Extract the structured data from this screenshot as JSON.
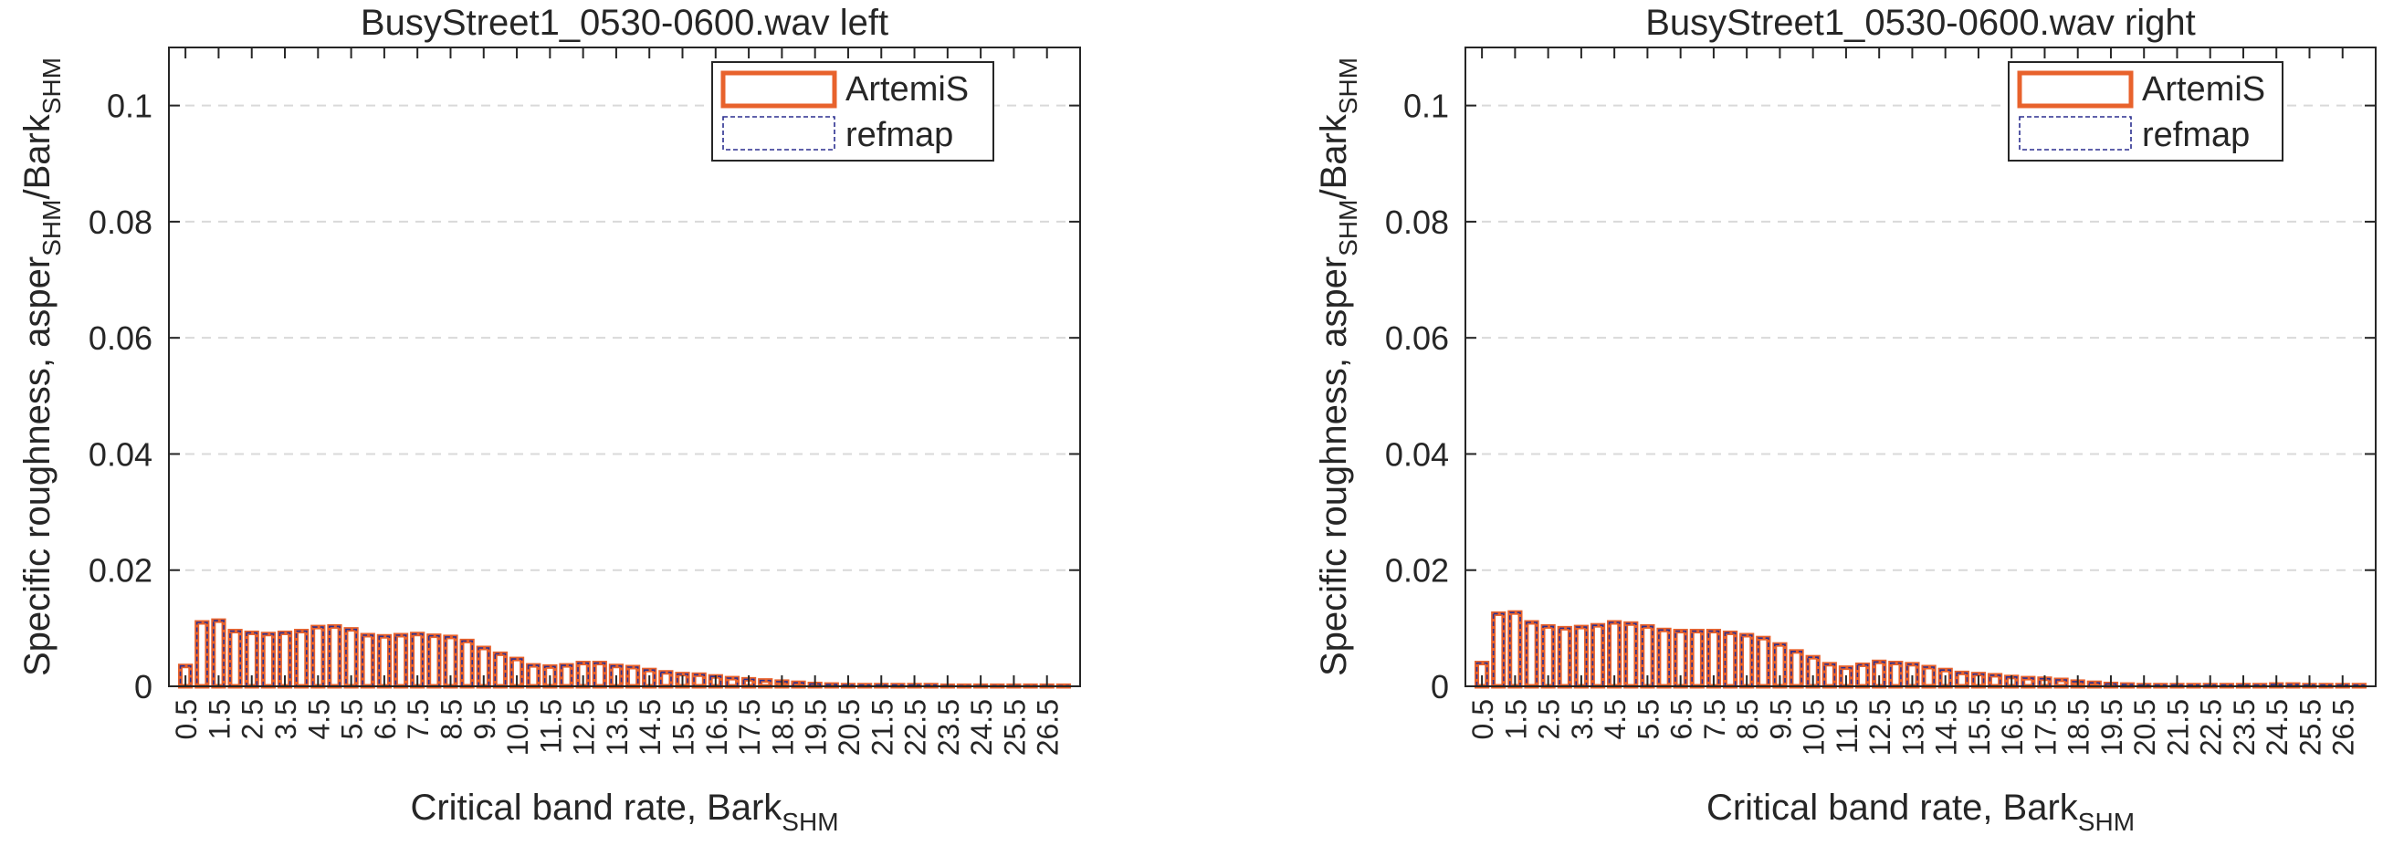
{
  "chart_data": [
    {
      "type": "bar",
      "title": "BusyStreet1_0530-0600.wav left",
      "xlabel": "Critical band rate, Bark",
      "xlabel_sub": "SHM",
      "ylabel_main": "Specific roughness, asper",
      "ylabel_sub1": "SHM",
      "ylabel_mid": "/Bark",
      "ylabel_sub2": "SHM",
      "ylim": [
        0,
        0.11
      ],
      "yticks": [
        0,
        0.02,
        0.04,
        0.06,
        0.08,
        0.1
      ],
      "ytick_labels": [
        "0",
        "0.02",
        "0.04",
        "0.06",
        "0.08",
        "0.1"
      ],
      "grid_y": true,
      "legend": {
        "position": "top-right",
        "entries": [
          "ArtemiS",
          "refmap"
        ]
      },
      "xtick_labels": [
        "0.5",
        "1.5",
        "2.5",
        "3.5",
        "4.5",
        "5.5",
        "6.5",
        "7.5",
        "8.5",
        "9.5",
        "10.5",
        "11.5",
        "12.5",
        "13.5",
        "14.5",
        "15.5",
        "16.5",
        "17.5",
        "18.5",
        "19.5",
        "20.5",
        "21.5",
        "22.5",
        "23.5",
        "24.5",
        "25.5",
        "26.5"
      ],
      "series": [
        {
          "name": "ArtemiS",
          "color": "#e8622c",
          "values": [
            0.0035,
            0.011,
            0.0113,
            0.0095,
            0.0092,
            0.009,
            0.0092,
            0.0095,
            0.0102,
            0.0103,
            0.0098,
            0.0088,
            0.0086,
            0.0088,
            0.009,
            0.0087,
            0.0085,
            0.0078,
            0.0066,
            0.0056,
            0.0047,
            0.0036,
            0.0034,
            0.0036,
            0.004,
            0.004,
            0.0035,
            0.0033,
            0.0028,
            0.0024,
            0.0021,
            0.002,
            0.0017,
            0.0014,
            0.0012,
            0.001,
            0.0008,
            0.0006,
            0.0004,
            0.0003,
            0.0002,
            0.0002,
            0.0002,
            0.0002,
            0.0002,
            0.0002,
            0.0001,
            0.0001,
            0.0001,
            0.0001,
            0.0001,
            0.0001,
            0.0001,
            0.0001
          ]
        },
        {
          "name": "refmap",
          "color": "#2b2f8f",
          "values": [
            0.0035,
            0.011,
            0.0113,
            0.0095,
            0.0092,
            0.009,
            0.0092,
            0.0095,
            0.0102,
            0.0103,
            0.0098,
            0.0088,
            0.0086,
            0.0088,
            0.009,
            0.0087,
            0.0085,
            0.0078,
            0.0066,
            0.0056,
            0.0047,
            0.0036,
            0.0034,
            0.0036,
            0.004,
            0.004,
            0.0035,
            0.0033,
            0.0028,
            0.0024,
            0.0021,
            0.002,
            0.0017,
            0.0014,
            0.0012,
            0.001,
            0.0008,
            0.0006,
            0.0004,
            0.0003,
            0.0002,
            0.0002,
            0.0002,
            0.0002,
            0.0002,
            0.0002,
            0.0001,
            0.0001,
            0.0001,
            0.0001,
            0.0001,
            0.0001,
            0.0001,
            0.0001
          ]
        }
      ]
    },
    {
      "type": "bar",
      "title": "BusyStreet1_0530-0600.wav right",
      "xlabel": "Critical band rate, Bark",
      "xlabel_sub": "SHM",
      "ylabel_main": "Specific roughness, asper",
      "ylabel_sub1": "SHM",
      "ylabel_mid": "/Bark",
      "ylabel_sub2": "SHM",
      "ylim": [
        0,
        0.11
      ],
      "yticks": [
        0,
        0.02,
        0.04,
        0.06,
        0.08,
        0.1
      ],
      "ytick_labels": [
        "0",
        "0.02",
        "0.04",
        "0.06",
        "0.08",
        "0.1"
      ],
      "grid_y": true,
      "legend": {
        "position": "top-right",
        "entries": [
          "ArtemiS",
          "refmap"
        ]
      },
      "xtick_labels": [
        "0.5",
        "1.5",
        "2.5",
        "3.5",
        "4.5",
        "5.5",
        "6.5",
        "7.5",
        "8.5",
        "9.5",
        "10.5",
        "11.5",
        "12.5",
        "13.5",
        "14.5",
        "15.5",
        "16.5",
        "17.5",
        "18.5",
        "19.5",
        "20.5",
        "21.5",
        "22.5",
        "23.5",
        "24.5",
        "25.5",
        "26.5"
      ],
      "series": [
        {
          "name": "ArtemiS",
          "color": "#e8622c",
          "values": [
            0.004,
            0.0125,
            0.0127,
            0.011,
            0.0103,
            0.01,
            0.0102,
            0.0105,
            0.011,
            0.0108,
            0.0103,
            0.0097,
            0.0095,
            0.0095,
            0.0095,
            0.0092,
            0.0088,
            0.0083,
            0.0072,
            0.006,
            0.005,
            0.0038,
            0.0032,
            0.0037,
            0.0042,
            0.004,
            0.0038,
            0.0033,
            0.0028,
            0.0023,
            0.0021,
            0.0019,
            0.0016,
            0.0014,
            0.0013,
            0.0011,
            0.0008,
            0.0006,
            0.0004,
            0.0003,
            0.0002,
            0.0002,
            0.0002,
            0.0002,
            0.0002,
            0.0002,
            0.0002,
            0.0002,
            0.0003,
            0.0003,
            0.0002,
            0.0002,
            0.0002,
            0.0002
          ]
        },
        {
          "name": "refmap",
          "color": "#2b2f8f",
          "values": [
            0.004,
            0.0125,
            0.0127,
            0.011,
            0.0103,
            0.01,
            0.0102,
            0.0105,
            0.011,
            0.0108,
            0.0103,
            0.0097,
            0.0095,
            0.0095,
            0.0095,
            0.0092,
            0.0088,
            0.0083,
            0.0072,
            0.006,
            0.005,
            0.0038,
            0.0032,
            0.0037,
            0.0042,
            0.004,
            0.0038,
            0.0033,
            0.0028,
            0.0023,
            0.0021,
            0.0019,
            0.0016,
            0.0014,
            0.0013,
            0.0011,
            0.0008,
            0.0006,
            0.0004,
            0.0003,
            0.0002,
            0.0002,
            0.0002,
            0.0002,
            0.0002,
            0.0002,
            0.0002,
            0.0002,
            0.0003,
            0.0003,
            0.0002,
            0.0002,
            0.0002,
            0.0002
          ]
        }
      ]
    }
  ]
}
